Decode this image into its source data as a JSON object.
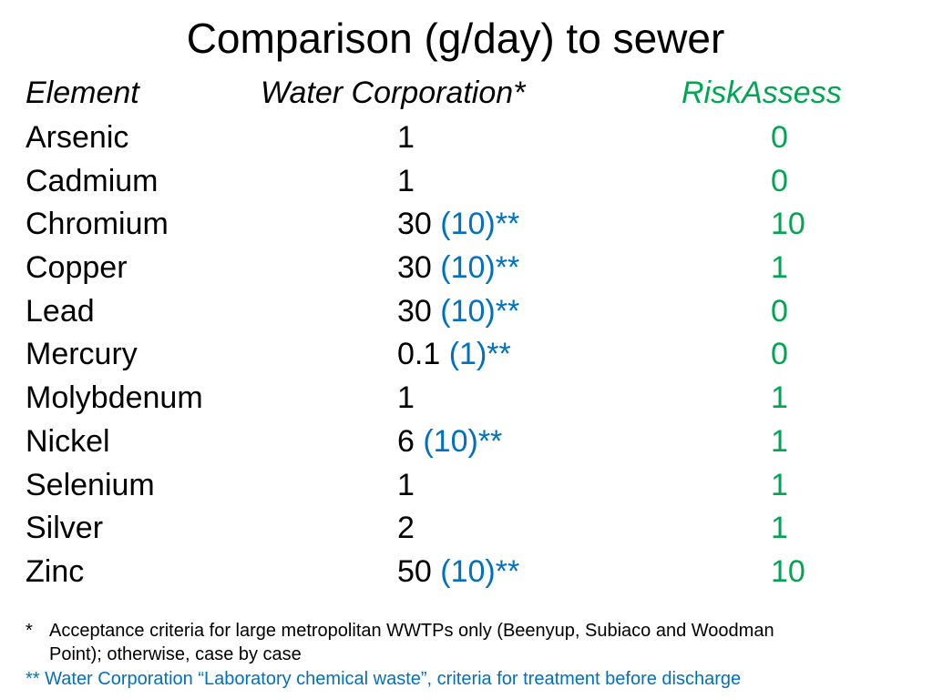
{
  "title": "Comparison (g/day) to sewer",
  "headers": {
    "element": "Element",
    "water": "Water Corporation*",
    "risk": "RiskAssess"
  },
  "rows": [
    {
      "element": "Arsenic",
      "water": "1",
      "water_note": "",
      "risk": "0"
    },
    {
      "element": "Cadmium",
      "water": "1",
      "water_note": "",
      "risk": "0"
    },
    {
      "element": "Chromium",
      "water": "30 ",
      "water_note": "(10)**",
      "risk": "10"
    },
    {
      "element": "Copper",
      "water": "30 ",
      "water_note": "(10)**",
      "risk": "1"
    },
    {
      "element": "Lead",
      "water": "30 ",
      "water_note": "(10)**",
      "risk": "0"
    },
    {
      "element": "Mercury",
      "water": "0.1 ",
      "water_note": "(1)**",
      "risk": "0"
    },
    {
      "element": "Molybdenum",
      "water": "1",
      "water_note": "",
      "risk": "1"
    },
    {
      "element": "Nickel",
      "water": "6 ",
      "water_note": "(10)**",
      "risk": "1"
    },
    {
      "element": "Selenium",
      "water": "1",
      "water_note": "",
      "risk": "1"
    },
    {
      "element": "Silver",
      "water": "2",
      "water_note": "",
      "risk": "1"
    },
    {
      "element": "Zinc",
      "water": "50 ",
      "water_note": "(10)**",
      "risk": "10"
    }
  ],
  "footnotes": {
    "star_marker": "*",
    "star_line1": "Acceptance criteria for large metropolitan WWTPs only (Beenyup, Subiaco and Woodman",
    "star_line2": "Point); otherwise, case by case",
    "double_star": "** Water Corporation “Laboratory chemical waste”, criteria for treatment before discharge"
  },
  "colors": {
    "riskassess": "#00a651",
    "note_blue": "#0070c0",
    "text": "#000000"
  }
}
